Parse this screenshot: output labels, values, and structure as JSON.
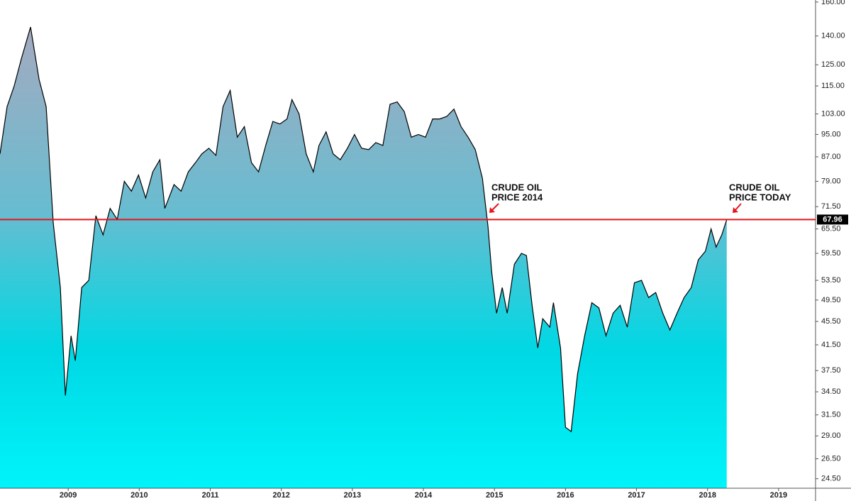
{
  "chart_data": {
    "type": "area",
    "x": [
      2008.04,
      2008.14,
      2008.24,
      2008.34,
      2008.47,
      2008.59,
      2008.69,
      2008.79,
      2008.89,
      2008.96,
      2009.04,
      2009.1,
      2009.19,
      2009.29,
      2009.39,
      2009.49,
      2009.59,
      2009.69,
      2009.79,
      2009.89,
      2009.99,
      2010.09,
      2010.19,
      2010.29,
      2010.36,
      2010.49,
      2010.59,
      2010.69,
      2010.79,
      2010.88,
      2010.98,
      2011.08,
      2011.18,
      2011.28,
      2011.38,
      2011.48,
      2011.58,
      2011.68,
      2011.78,
      2011.88,
      2011.98,
      2012.08,
      2012.15,
      2012.25,
      2012.35,
      2012.45,
      2012.53,
      2012.63,
      2012.73,
      2012.83,
      2012.93,
      2013.03,
      2013.13,
      2013.23,
      2013.33,
      2013.43,
      2013.53,
      2013.63,
      2013.73,
      2013.83,
      2013.93,
      2014.03,
      2014.13,
      2014.23,
      2014.33,
      2014.43,
      2014.53,
      2014.63,
      2014.73,
      2014.83,
      2014.91,
      2014.96,
      2015.03,
      2015.11,
      2015.18,
      2015.28,
      2015.38,
      2015.45,
      2015.53,
      2015.61,
      2015.68,
      2015.78,
      2015.83,
      2015.93,
      2016.0,
      2016.08,
      2016.17,
      2016.27,
      2016.37,
      2016.47,
      2016.57,
      2016.67,
      2016.77,
      2016.87,
      2016.97,
      2017.07,
      2017.17,
      2017.27,
      2017.37,
      2017.47,
      2017.57,
      2017.67,
      2017.77,
      2017.87,
      2017.97,
      2018.05,
      2018.12,
      2018.2,
      2018.27
    ],
    "values": [
      88,
      106,
      115,
      128,
      145,
      118,
      106,
      67,
      52,
      34,
      43,
      39,
      52,
      53.5,
      69,
      64,
      71,
      68,
      79,
      76,
      81,
      74,
      82,
      86,
      71,
      78,
      76,
      82,
      85,
      88,
      90,
      87.5,
      106,
      113,
      94,
      98,
      85,
      82,
      91,
      100,
      99,
      101,
      109,
      103,
      88,
      82,
      91,
      96,
      88,
      86,
      90,
      95,
      90,
      89.5,
      92,
      91,
      107,
      108,
      104,
      94,
      95,
      94,
      101,
      101,
      102,
      105,
      98,
      94,
      89.5,
      80,
      66,
      55.5,
      47,
      52,
      47,
      57,
      59.5,
      59,
      48.5,
      41,
      46,
      44.5,
      49,
      41,
      30,
      29.5,
      37,
      43,
      49,
      48,
      43,
      47,
      48.5,
      44.5,
      53,
      53.5,
      50,
      51,
      47,
      44,
      47,
      50,
      52,
      58,
      60,
      65.5,
      61,
      64,
      67.96
    ],
    "color": "#000000",
    "log_scale": true,
    "grid": false,
    "xlim": [
      2008.04,
      2019.52
    ],
    "xticks": [
      2009,
      2010,
      2011,
      2012,
      2013,
      2014,
      2015,
      2016,
      2017,
      2018,
      2019
    ],
    "ylim": [
      23.6,
      161.3
    ],
    "yticks": [
      {
        "value": 24.5,
        "label": "24.50"
      },
      {
        "value": 26.5,
        "label": "26.50"
      },
      {
        "value": 29,
        "label": "29.00"
      },
      {
        "value": 31.5,
        "label": "31.50"
      },
      {
        "value": 34.5,
        "label": "34.50"
      },
      {
        "value": 37.5,
        "label": "37.50"
      },
      {
        "value": 41.5,
        "label": "41.50"
      },
      {
        "value": 45.5,
        "label": "45.50"
      },
      {
        "value": 49.5,
        "label": "49.50"
      },
      {
        "value": 53.5,
        "label": "53.50"
      },
      {
        "value": 59.5,
        "label": "59.50"
      },
      {
        "value": 65.5,
        "label": "65.50"
      },
      {
        "value": 71.5,
        "label": "71.50"
      },
      {
        "value": 79,
        "label": "79.00"
      },
      {
        "value": 87,
        "label": "87.00"
      },
      {
        "value": 95,
        "label": "95.00"
      },
      {
        "value": 103,
        "label": "103.00"
      },
      {
        "value": 115,
        "label": "115.00"
      },
      {
        "value": 125,
        "label": "125.00"
      },
      {
        "value": 140,
        "label": "140.00"
      },
      {
        "value": 160,
        "label": "160.00"
      }
    ],
    "hline": {
      "value": 67.96,
      "color": "#e8141c"
    },
    "annotations": [
      {
        "text": [
          "CRUDE OIL",
          "PRICE 2014"
        ]
      },
      {
        "text": [
          "CRUDE OIL",
          "PRICE TODAY"
        ]
      }
    ]
  }
}
